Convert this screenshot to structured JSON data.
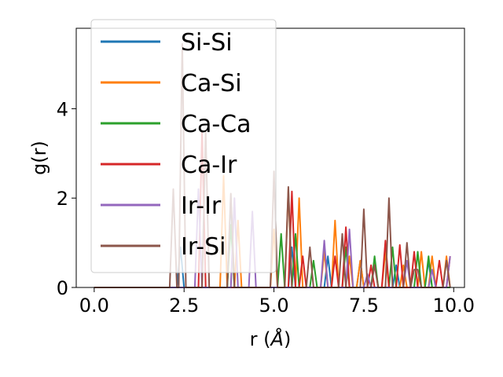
{
  "chart_data": {
    "type": "line",
    "xlabel": "r (",
    "xlabel_unit": "Å",
    "xlabel_close": ")",
    "ylabel": "g(r)",
    "xlim": [
      -0.5,
      10.3
    ],
    "ylim": [
      0,
      5.8
    ],
    "xticks": [
      0.0,
      2.5,
      5.0,
      7.5,
      10.0
    ],
    "xtick_labels": [
      "0.0",
      "2.5",
      "5.0",
      "7.5",
      "10.0"
    ],
    "yticks": [
      0,
      2,
      4
    ],
    "ytick_labels": [
      "0",
      "2",
      "4"
    ],
    "grid": false,
    "legend_position": "top-left",
    "series": [
      {
        "name": "Si-Si",
        "color": "#1f77b4",
        "points": [
          [
            0,
            0
          ],
          [
            2.3,
            0
          ],
          [
            2.4,
            0.9
          ],
          [
            2.5,
            0
          ],
          [
            3.7,
            0
          ],
          [
            3.8,
            2.0
          ],
          [
            3.9,
            0
          ],
          [
            5.4,
            0
          ],
          [
            5.5,
            0.9
          ],
          [
            5.6,
            0
          ],
          [
            6.4,
            0
          ],
          [
            6.5,
            0.7
          ],
          [
            6.6,
            0
          ],
          [
            7.3,
            0
          ],
          [
            7.4,
            0.6
          ],
          [
            7.5,
            0
          ],
          [
            8.3,
            0
          ],
          [
            8.4,
            0.5
          ],
          [
            8.5,
            0
          ],
          [
            9.2,
            0
          ],
          [
            9.3,
            0.6
          ],
          [
            9.4,
            0
          ],
          [
            9.9,
            0
          ]
        ]
      },
      {
        "name": "Ca-Si",
        "color": "#ff7f0e",
        "points": [
          [
            0,
            0
          ],
          [
            3.5,
            0
          ],
          [
            3.6,
            2.5
          ],
          [
            3.7,
            0
          ],
          [
            3.9,
            0
          ],
          [
            4.0,
            1.5
          ],
          [
            4.1,
            0
          ],
          [
            4.9,
            0
          ],
          [
            5.0,
            1.3
          ],
          [
            5.1,
            0
          ],
          [
            5.3,
            0
          ],
          [
            5.4,
            2.2
          ],
          [
            5.5,
            0
          ],
          [
            5.6,
            0
          ],
          [
            5.7,
            2.0
          ],
          [
            5.8,
            0
          ],
          [
            6.3,
            0
          ],
          [
            6.4,
            0.8
          ],
          [
            6.5,
            0
          ],
          [
            6.6,
            0
          ],
          [
            6.7,
            1.5
          ],
          [
            6.8,
            0
          ],
          [
            7.0,
            0
          ],
          [
            7.1,
            0.7
          ],
          [
            7.2,
            0
          ],
          [
            7.3,
            0
          ],
          [
            7.4,
            0.6
          ],
          [
            7.5,
            0
          ],
          [
            7.7,
            0
          ],
          [
            7.8,
            0.6
          ],
          [
            7.9,
            0
          ],
          [
            8.0,
            0
          ],
          [
            8.1,
            0.8
          ],
          [
            8.2,
            0
          ],
          [
            8.5,
            0
          ],
          [
            8.6,
            0.5
          ],
          [
            8.7,
            0
          ],
          [
            9.0,
            0
          ],
          [
            9.1,
            0.8
          ],
          [
            9.2,
            0
          ],
          [
            9.3,
            0
          ],
          [
            9.4,
            0.7
          ],
          [
            9.5,
            0
          ],
          [
            9.7,
            0
          ],
          [
            9.8,
            0.7
          ],
          [
            9.9,
            0
          ]
        ]
      },
      {
        "name": "Ca-Ca",
        "color": "#2ca02c",
        "points": [
          [
            0,
            0
          ],
          [
            3.7,
            0
          ],
          [
            3.8,
            1.4
          ],
          [
            3.9,
            0
          ],
          [
            5.1,
            0
          ],
          [
            5.2,
            1.2
          ],
          [
            5.3,
            0
          ],
          [
            5.5,
            0
          ],
          [
            5.6,
            1.2
          ],
          [
            5.7,
            0
          ],
          [
            6.0,
            0
          ],
          [
            6.1,
            0.6
          ],
          [
            6.2,
            0
          ],
          [
            6.9,
            0
          ],
          [
            7.0,
            0.9
          ],
          [
            7.1,
            0
          ],
          [
            7.7,
            0
          ],
          [
            7.8,
            0.7
          ],
          [
            7.9,
            0
          ],
          [
            8.2,
            0
          ],
          [
            8.3,
            0.9
          ],
          [
            8.4,
            0
          ],
          [
            8.9,
            0
          ],
          [
            9.0,
            0.8
          ],
          [
            9.1,
            0
          ],
          [
            9.2,
            0
          ],
          [
            9.3,
            0.7
          ],
          [
            9.4,
            0
          ],
          [
            9.9,
            0
          ]
        ]
      },
      {
        "name": "Ca-Ir",
        "color": "#d62728",
        "points": [
          [
            0,
            0
          ],
          [
            2.9,
            0
          ],
          [
            3.0,
            3.5
          ],
          [
            3.1,
            0
          ],
          [
            5.4,
            0
          ],
          [
            5.5,
            2.15
          ],
          [
            5.6,
            0
          ],
          [
            5.7,
            0
          ],
          [
            5.8,
            0.7
          ],
          [
            5.9,
            0
          ],
          [
            6.6,
            0
          ],
          [
            6.7,
            0.7
          ],
          [
            6.8,
            0
          ],
          [
            6.9,
            0
          ],
          [
            7.0,
            1.35
          ],
          [
            7.1,
            0
          ],
          [
            7.6,
            0
          ],
          [
            7.7,
            0.5
          ],
          [
            7.8,
            0
          ],
          [
            8.0,
            0
          ],
          [
            8.1,
            1.05
          ],
          [
            8.2,
            0
          ],
          [
            8.4,
            0
          ],
          [
            8.5,
            0.95
          ],
          [
            8.6,
            0
          ],
          [
            8.8,
            0
          ],
          [
            8.9,
            0.8
          ],
          [
            9.0,
            0
          ],
          [
            9.5,
            0
          ],
          [
            9.6,
            0.6
          ],
          [
            9.7,
            0
          ],
          [
            9.8,
            0
          ],
          [
            9.9,
            0.7
          ]
        ]
      },
      {
        "name": "Ir-Ir",
        "color": "#9467bd",
        "points": [
          [
            0,
            0
          ],
          [
            2.8,
            0
          ],
          [
            2.9,
            2.2
          ],
          [
            3.0,
            0
          ],
          [
            3.8,
            0
          ],
          [
            3.9,
            2.0
          ],
          [
            4.0,
            0
          ],
          [
            4.3,
            0
          ],
          [
            4.4,
            1.7
          ],
          [
            4.5,
            0
          ],
          [
            6.3,
            0
          ],
          [
            6.4,
            1.05
          ],
          [
            6.5,
            0
          ],
          [
            7.0,
            0
          ],
          [
            7.1,
            1.3
          ],
          [
            7.2,
            0
          ],
          [
            7.5,
            0
          ],
          [
            7.6,
            0.3
          ],
          [
            7.7,
            0
          ],
          [
            8.6,
            0
          ],
          [
            8.7,
            0.6
          ],
          [
            8.8,
            0
          ],
          [
            9.3,
            0
          ],
          [
            9.4,
            0.4
          ],
          [
            9.5,
            0
          ],
          [
            9.8,
            0
          ],
          [
            9.9,
            0.7
          ]
        ]
      },
      {
        "name": "Ir-Si",
        "color": "#8c564b",
        "points": [
          [
            0,
            0
          ],
          [
            2.1,
            0
          ],
          [
            2.2,
            2.2
          ],
          [
            2.3,
            0
          ],
          [
            2.35,
            0
          ],
          [
            2.45,
            5.45
          ],
          [
            2.55,
            0
          ],
          [
            3.0,
            0
          ],
          [
            3.1,
            3.5
          ],
          [
            3.2,
            0
          ],
          [
            3.7,
            0
          ],
          [
            3.8,
            2.1
          ],
          [
            3.9,
            0
          ],
          [
            4.9,
            0
          ],
          [
            5.0,
            2.6
          ],
          [
            5.1,
            0
          ],
          [
            5.3,
            0
          ],
          [
            5.4,
            2.25
          ],
          [
            5.5,
            0
          ],
          [
            5.9,
            0
          ],
          [
            6.0,
            0.9
          ],
          [
            6.1,
            0
          ],
          [
            6.8,
            0
          ],
          [
            6.9,
            1.2
          ],
          [
            7.0,
            0
          ],
          [
            7.4,
            0
          ],
          [
            7.5,
            1.75
          ],
          [
            7.6,
            0
          ],
          [
            7.7,
            0
          ],
          [
            7.8,
            0.5
          ],
          [
            7.9,
            0
          ],
          [
            8.1,
            0
          ],
          [
            8.2,
            2.0
          ],
          [
            8.3,
            0
          ],
          [
            8.6,
            0
          ],
          [
            8.7,
            1.0
          ],
          [
            8.8,
            0
          ],
          [
            8.9,
            0.4
          ],
          [
            9.0,
            0.4
          ],
          [
            9.1,
            0
          ],
          [
            9.7,
            0
          ],
          [
            9.8,
            0.6
          ],
          [
            9.9,
            0
          ]
        ]
      }
    ]
  }
}
